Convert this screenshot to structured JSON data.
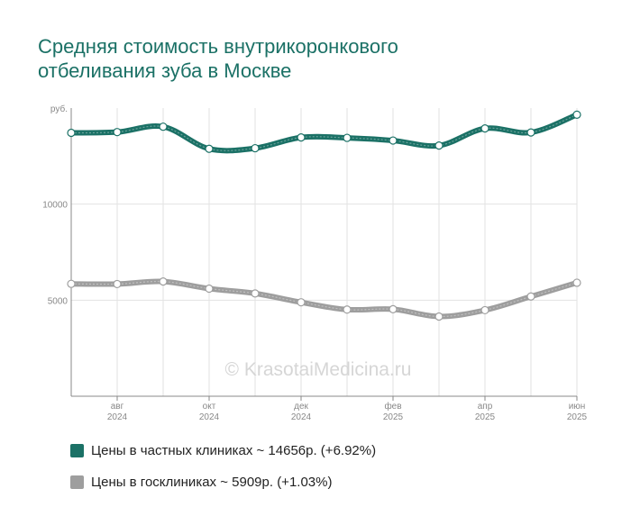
{
  "title_line1": "Средняя стоимость внутрикоронкового",
  "title_line2": "отбеливания зуба в Москве",
  "watermark": "© KrasotaiMedicina.ru",
  "chart_data": {
    "type": "line",
    "y_unit": "руб.",
    "ylim": [
      0,
      15000
    ],
    "yticks": [
      5000,
      10000
    ],
    "grid": true,
    "x": [
      "2024-07",
      "2024-08",
      "2024-09",
      "2024-10",
      "2024-11",
      "2024-12",
      "2025-01",
      "2025-02",
      "2025-03",
      "2025-04",
      "2025-05",
      "2025-06"
    ],
    "x_tick_labels": [
      {
        "month": "авг",
        "year": "2024"
      },
      {
        "month": "окт",
        "year": "2024"
      },
      {
        "month": "дек",
        "year": "2024"
      },
      {
        "month": "фев",
        "year": "2025"
      },
      {
        "month": "апр",
        "year": "2025"
      },
      {
        "month": "июн",
        "year": "2025"
      }
    ],
    "series": [
      {
        "name": "Цены в частных клиниках",
        "color": "#1b7166",
        "values": [
          13710,
          13750,
          14030,
          12880,
          12910,
          13470,
          13450,
          13310,
          13050,
          13940,
          13730,
          14656
        ]
      },
      {
        "name": "Цены в госклиниках",
        "color": "#9e9e9e",
        "values": [
          5850,
          5840,
          5970,
          5600,
          5350,
          4890,
          4510,
          4530,
          4150,
          4480,
          5190,
          5909
        ]
      }
    ]
  },
  "legend": [
    {
      "label": "Цены в частных клиниках ~ 14656р. (+6.92%)",
      "color": "#1b7166"
    },
    {
      "label": "Цены в госклиниках ~ 5909р. (+1.03%)",
      "color": "#9e9e9e"
    }
  ]
}
